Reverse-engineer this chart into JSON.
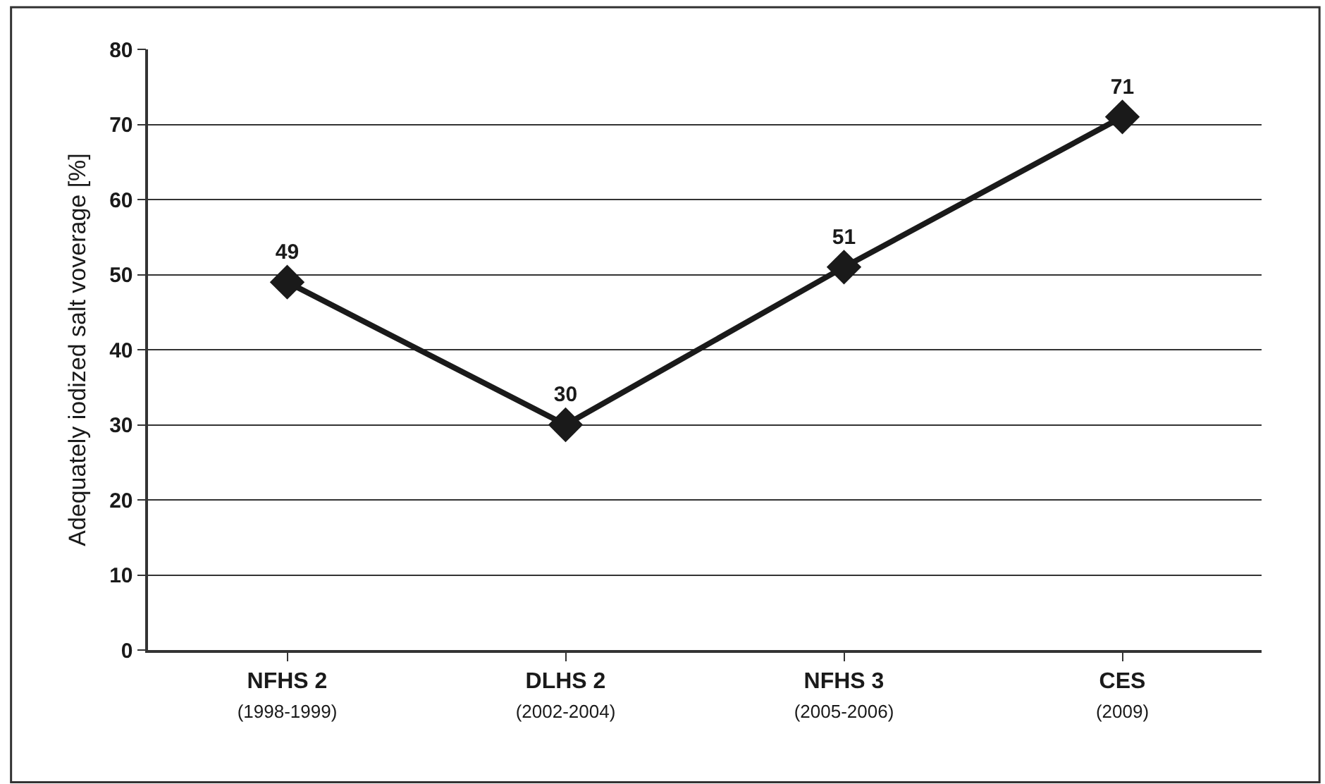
{
  "chart_data": {
    "type": "line",
    "ylabel": "Adequately iodized salt voverage [%]",
    "categories": [
      "NFHS 2\n(1998-1999)",
      "DLHS 2\n(2002-2004)",
      "NFHS 3\n(2005-2006)",
      "CES\n(2009)"
    ],
    "series": [
      {
        "color": "#1a1a1a",
        "values": [
          49,
          30,
          51,
          71
        ]
      }
    ],
    "ylim": [
      0,
      80
    ],
    "yticks": [
      0,
      10,
      20,
      30,
      40,
      50,
      60,
      70,
      80
    ],
    "grid": "y",
    "marker": "diamond",
    "line_style": "solid",
    "data_labels": true
  }
}
